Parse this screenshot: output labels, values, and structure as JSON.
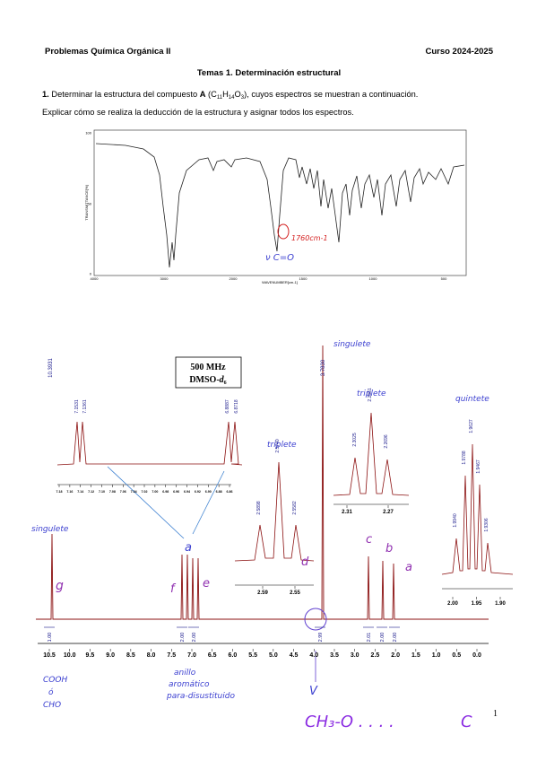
{
  "header": {
    "left": "Problemas Química Orgánica II",
    "right": "Curso 2024-2025"
  },
  "section_title": "Temas 1. Determinación estructural",
  "problem": {
    "number": "1.",
    "line1": [
      "Determinar la estructura del compuesto ",
      "A",
      " (C",
      "11",
      "H",
      "14",
      "O",
      "3",
      "), cuyos espectros se muestran a continuación."
    ],
    "line2": "Explicar cómo se realiza la deducción de la estructura y asignar todos los espectros."
  },
  "ir_spectrum": {
    "y_axis_title": "TRANSMITTANCE[%]",
    "x_axis_title": "WAVENUMBER[cm-1]",
    "yticks": [
      "100",
      "50",
      "0"
    ],
    "xticks": [
      "4000",
      "3000",
      "2000",
      "1500",
      "1000",
      "500"
    ],
    "annotations": {
      "band": "1760cm-1",
      "assignment": "ν C=O"
    }
  },
  "nmr_spectrum": {
    "frequency": "500 MHz",
    "solvent": [
      "DMSO-",
      "d",
      "6"
    ],
    "xticks": [
      "10.5",
      "10.0",
      "9.5",
      "9.0",
      "8.5",
      "8.0",
      "7.5",
      "7.0",
      "6.5",
      "6.0",
      "5.5",
      "5.0",
      "4.5",
      "4.0",
      "3.5",
      "3.0",
      "2.5",
      "2.0",
      "1.5",
      "1.0",
      "0.5",
      "0.0"
    ],
    "main_peak_labels": [
      "10.3931",
      "3.7830"
    ],
    "integrals": [
      "1.00",
      "2.00",
      "2.00",
      "2.99",
      "2.01",
      "2.00",
      "2.00"
    ],
    "inset_aromatic": {
      "peak_labels": [
        "7.1531",
        "7.1361",
        "6.8887",
        "6.8718"
      ],
      "xticks": [
        "7.18",
        "7.16",
        "7.14",
        "7.12",
        "7.10",
        "7.08",
        "7.06",
        "7.04",
        "7.02",
        "7.00",
        "6.98",
        "6.96",
        "6.94",
        "6.92",
        "6.90",
        "6.88",
        "6.86"
      ]
    },
    "inset_triplet_1": {
      "peak_labels": [
        "2.5898",
        "2.5740",
        "2.5582"
      ],
      "xticks": [
        "2.59",
        "2.55"
      ]
    },
    "inset_triplet_2": {
      "peak_labels": [
        "2.3025",
        "2.2861",
        "2.2696"
      ],
      "xticks": [
        "2.31",
        "2.27"
      ]
    },
    "inset_quintet": {
      "peak_labels": [
        "1.9940",
        "1.9788",
        "1.9627",
        "1.9467",
        "1.9306"
      ],
      "xticks": [
        "2.00",
        "1.95",
        "1.90"
      ]
    }
  },
  "handwritten": {
    "singulete_1": "singulete",
    "g": "g",
    "singulete_2": "singulete",
    "triplete_1": "triplete",
    "triplete_2": "triplete",
    "quintete": "quintete",
    "f": "f",
    "e": "e",
    "a_aromatic": "a",
    "d": "d",
    "c": "c",
    "b": "b",
    "a": "a",
    "acid": [
      "COOH",
      "ó",
      "CHO"
    ],
    "ring": [
      "anillo",
      "aromático",
      "para-disustituido"
    ],
    "v": "V",
    "methoxy": "CH₃-O . . . .",
    "c_end": "C"
  },
  "page_number": "1"
}
